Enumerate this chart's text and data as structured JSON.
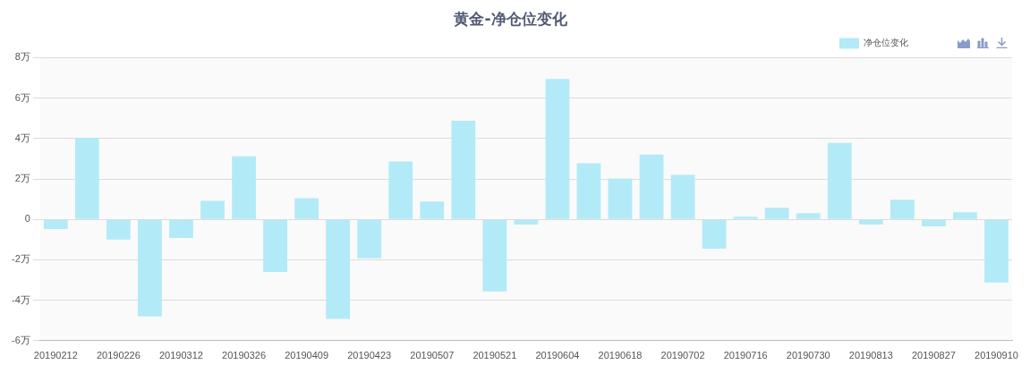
{
  "chart_data": {
    "type": "bar",
    "title": "黄金-净仓位变化",
    "categories": [
      "20190212",
      null,
      "20190226",
      null,
      "20190312",
      null,
      "20190326",
      null,
      "20190409",
      null,
      "20190423",
      null,
      "20190507",
      null,
      "20190521",
      null,
      "20190604",
      null,
      "20190618",
      null,
      "20190702",
      null,
      "20190716",
      null,
      "20190730",
      null,
      "20190813",
      null,
      "20190827",
      null,
      "20190910"
    ],
    "series": [
      {
        "name": "净仓位变化",
        "color": "#b3eaf8",
        "values": [
          -0.48,
          4.04,
          -1.0,
          -4.8,
          -0.92,
          0.92,
          3.12,
          -2.6,
          1.05,
          -4.92,
          -1.93,
          2.86,
          0.88,
          4.88,
          -3.56,
          -0.26,
          6.95,
          2.77,
          2.02,
          3.21,
          2.2,
          -1.45,
          0.13,
          0.57,
          0.31,
          3.78,
          -0.26,
          0.97,
          -0.35,
          0.35,
          -3.12
        ]
      }
    ],
    "ylim": [
      -6,
      8
    ],
    "yticks": [
      {
        "value": -6,
        "label": "-6万"
      },
      {
        "value": -4,
        "label": "-4万"
      },
      {
        "value": -2,
        "label": "-2万"
      },
      0,
      {
        "value": 2,
        "label": "2万"
      },
      {
        "value": 4,
        "label": "4万"
      },
      {
        "value": 6,
        "label": "6万"
      },
      {
        "value": 8,
        "label": "8万"
      }
    ],
    "grid": "y",
    "legend": "top right"
  }
}
